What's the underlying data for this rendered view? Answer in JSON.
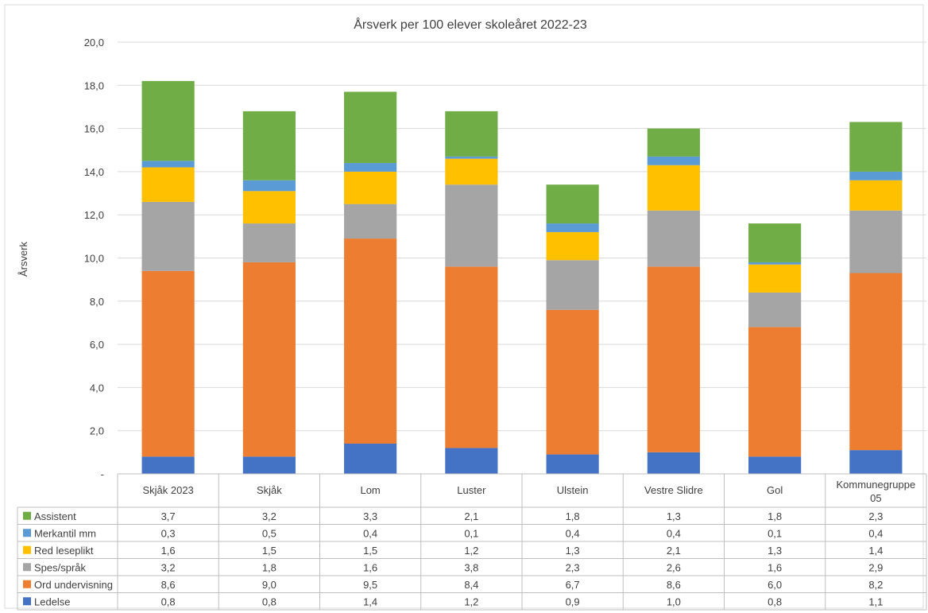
{
  "chart_data": {
    "type": "bar",
    "stacked": true,
    "title": "Årsverk per 100 elever skoleåret 2022-23",
    "ylabel": "Årsverk",
    "xlabel": "",
    "ylim": [
      0,
      20
    ],
    "y_ticks": [
      "-",
      "2,0",
      "4,0",
      "6,0",
      "8,0",
      "10,0",
      "12,0",
      "14,0",
      "16,0",
      "18,0",
      "20,0"
    ],
    "grid": true,
    "legend_placement": "data-table-left",
    "categories": [
      "Skjåk 2023",
      "Skjåk",
      "Lom",
      "Luster",
      "Ulstein",
      "Vestre Slidre",
      "Gol",
      "Kommunegruppe 05"
    ],
    "category_lines": [
      [
        "Skjåk 2023"
      ],
      [
        "Skjåk"
      ],
      [
        "Lom"
      ],
      [
        "Luster"
      ],
      [
        "Ulstein"
      ],
      [
        "Vestre Slidre"
      ],
      [
        "Gol"
      ],
      [
        "Kommunegruppe",
        "05"
      ]
    ],
    "series": [
      {
        "name": "Ledelse",
        "color": "#4472C4",
        "values": [
          0.8,
          0.8,
          1.4,
          1.2,
          0.9,
          1.0,
          0.8,
          1.1
        ],
        "labels": [
          "0,8",
          "0,8",
          "1,4",
          "1,2",
          "0,9",
          "1,0",
          "0,8",
          "1,1"
        ]
      },
      {
        "name": "Ord undervisning",
        "color": "#ED7D31",
        "values": [
          8.6,
          9.0,
          9.5,
          8.4,
          6.7,
          8.6,
          6.0,
          8.2
        ],
        "labels": [
          "8,6",
          "9,0",
          "9,5",
          "8,4",
          "6,7",
          "8,6",
          "6,0",
          "8,2"
        ]
      },
      {
        "name": "Spes/språk",
        "color": "#A5A5A5",
        "values": [
          3.2,
          1.8,
          1.6,
          3.8,
          2.3,
          2.6,
          1.6,
          2.9
        ],
        "labels": [
          "3,2",
          "1,8",
          "1,6",
          "3,8",
          "2,3",
          "2,6",
          "1,6",
          "2,9"
        ]
      },
      {
        "name": "Red leseplikt",
        "color": "#FFC000",
        "values": [
          1.6,
          1.5,
          1.5,
          1.2,
          1.3,
          2.1,
          1.3,
          1.4
        ],
        "labels": [
          "1,6",
          "1,5",
          "1,5",
          "1,2",
          "1,3",
          "2,1",
          "1,3",
          "1,4"
        ]
      },
      {
        "name": "Merkantil mm",
        "color": "#5B9BD5",
        "values": [
          0.3,
          0.5,
          0.4,
          0.1,
          0.4,
          0.4,
          0.1,
          0.4
        ],
        "labels": [
          "0,3",
          "0,5",
          "0,4",
          "0,1",
          "0,4",
          "0,4",
          "0,1",
          "0,4"
        ]
      },
      {
        "name": "Assistent",
        "color": "#70AD47",
        "values": [
          3.7,
          3.2,
          3.3,
          2.1,
          1.8,
          1.3,
          1.8,
          2.3
        ],
        "labels": [
          "3,7",
          "3,2",
          "3,3",
          "2,1",
          "1,8",
          "1,3",
          "1,8",
          "2,3"
        ]
      }
    ],
    "table_row_order": [
      "Assistent",
      "Merkantil mm",
      "Red leseplikt",
      "Spes/språk",
      "Ord undervisning",
      "Ledelse"
    ]
  }
}
